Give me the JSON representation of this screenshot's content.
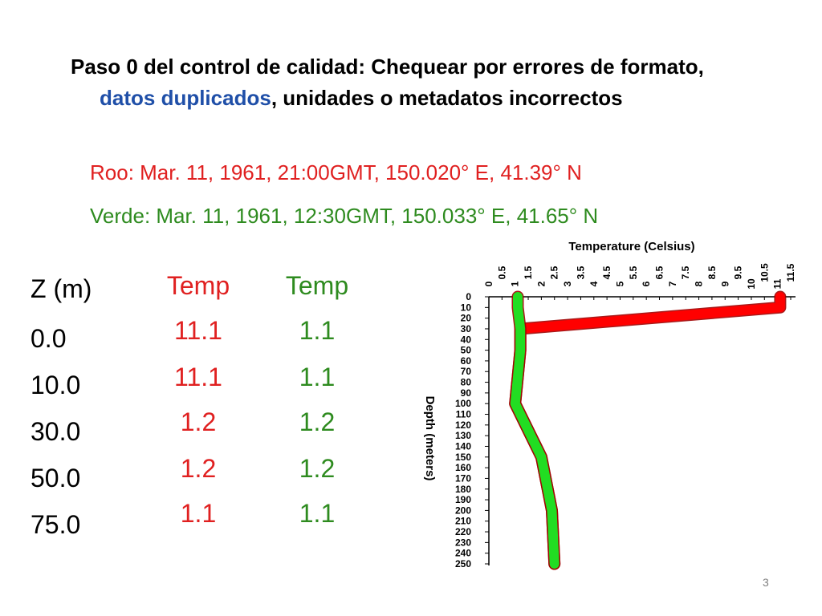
{
  "heading": {
    "prefix": "Paso 0 del control de calidad: Chequear por errores de formato, ",
    "highlight": "datos duplicados",
    "suffix": ", unidades o metadatos incorrectos"
  },
  "meta": {
    "roo": "Roo: Mar. 11, 1961,  21:00GMT, 150.020°  E, 41.39°  N",
    "verde": "Verde: Mar. 11, 1961, 12:30GMT, 150.033°  E, 41.65°  N"
  },
  "table": {
    "headers": [
      "Z (m)",
      "Temp",
      "Temp"
    ],
    "rows": [
      [
        "0.0",
        "11.1",
        "1.1"
      ],
      [
        "10.0",
        "11.1",
        "1.1"
      ],
      [
        "30.0",
        "1.2",
        "1.2"
      ],
      [
        "50.0",
        "1.2",
        "1.2"
      ],
      [
        "75.0",
        "1.1",
        "1.1"
      ]
    ]
  },
  "chart_data": {
    "type": "line",
    "xlabel": "Temperature (Celsius)",
    "ylabel": "Depth (meters)",
    "xlim": [
      0,
      11.5
    ],
    "ylim": [
      0,
      250
    ],
    "x_ticks": [
      "0",
      "0.5",
      "1",
      "1.5",
      "2",
      "2.5",
      "3",
      "3.5",
      "4",
      "4.5",
      "5",
      "5.5",
      "6",
      "6.5",
      "7",
      "7.5",
      "8",
      "8.5",
      "9",
      "9.5",
      "10",
      "10.5",
      "11",
      "11.5"
    ],
    "y_ticks": [
      "0",
      "10",
      "20",
      "30",
      "40",
      "50",
      "60",
      "70",
      "80",
      "90",
      "100",
      "110",
      "120",
      "130",
      "140",
      "150",
      "160",
      "170",
      "180",
      "190",
      "200",
      "210",
      "220",
      "230",
      "240",
      "250"
    ],
    "series": [
      {
        "color": "#ff0000",
        "x": [
          11.1,
          11.1,
          1.2,
          1.2,
          1.1,
          1.0,
          2.0,
          2.4,
          2.5
        ],
        "y": [
          0,
          10,
          30,
          50,
          75,
          100,
          150,
          200,
          250
        ]
      },
      {
        "color": "#22dd22",
        "x": [
          1.1,
          1.1,
          1.2,
          1.2,
          1.1,
          1.0,
          2.0,
          2.4,
          2.5
        ],
        "y": [
          0,
          10,
          30,
          50,
          75,
          100,
          150,
          200,
          250
        ]
      }
    ]
  },
  "page_number": "3"
}
